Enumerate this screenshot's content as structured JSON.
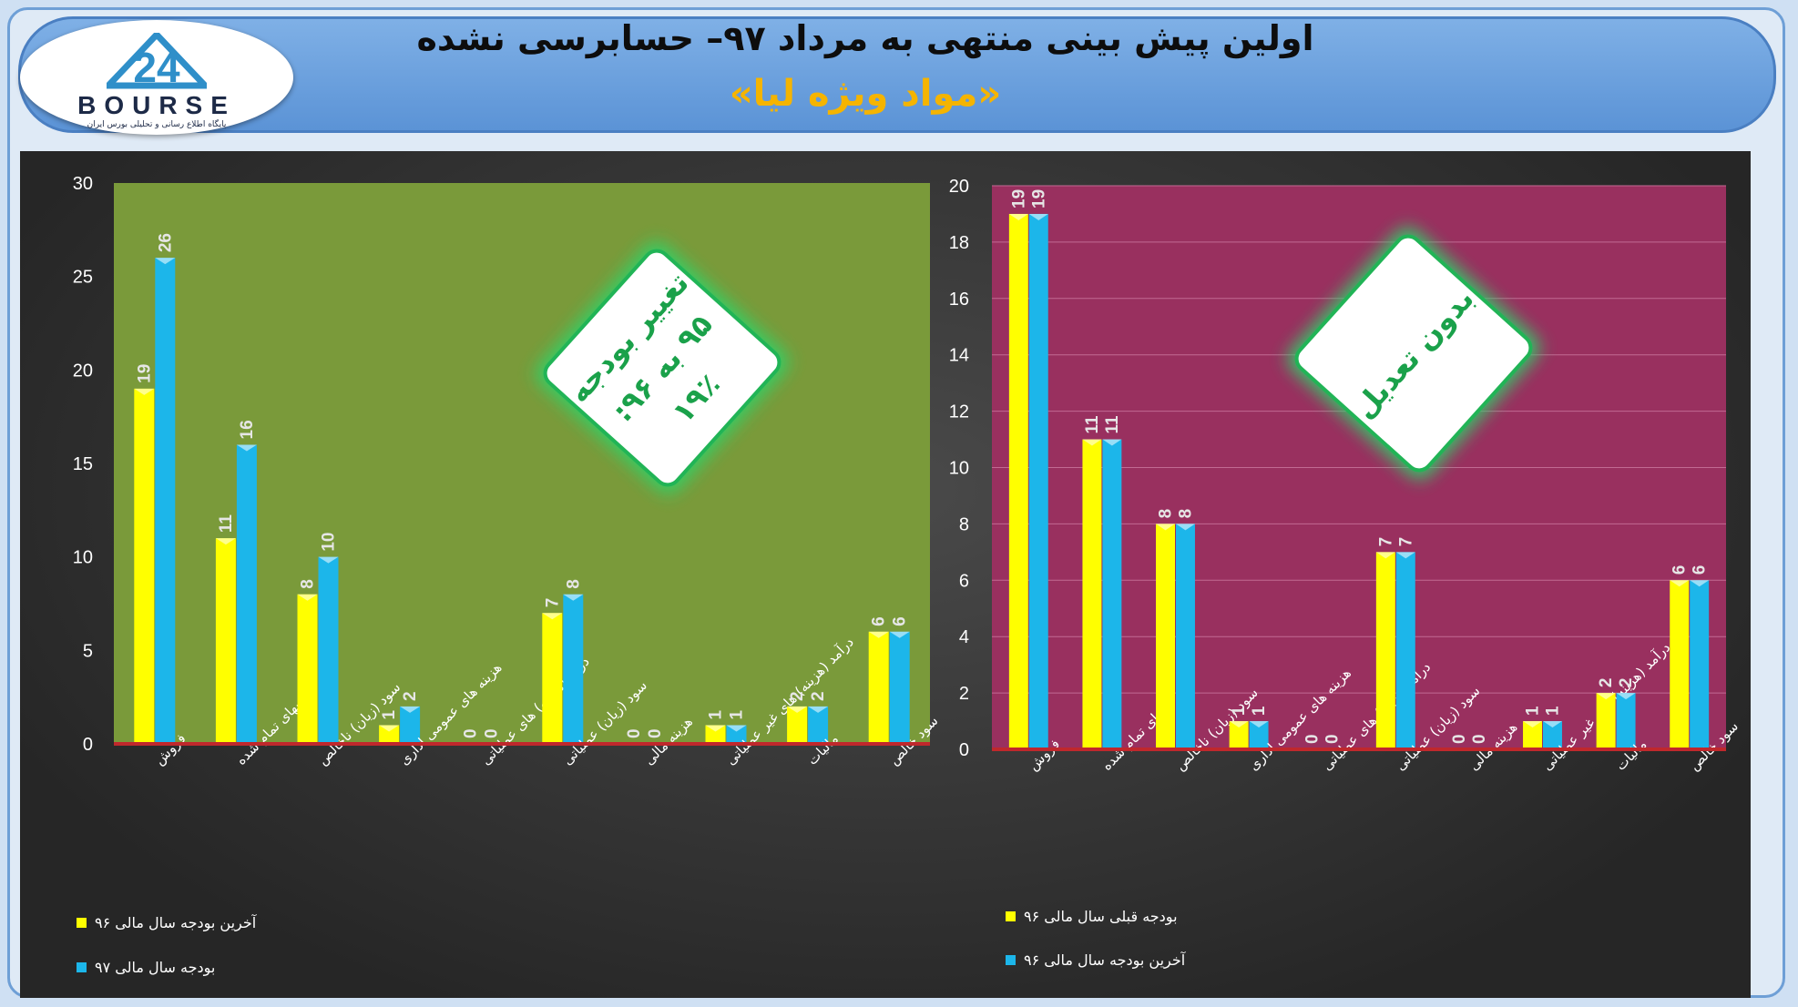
{
  "header": {
    "title": "اولین پیش بینی منتهی به مرداد ۹۷– حسابرسی نشده",
    "subtitle": "«مواد ویژه لیا»"
  },
  "logo": {
    "word": "BOURSE",
    "tagline": "پایگاه اطلاع رسانی و تحلیلی بورس ایران",
    "mark": "24"
  },
  "colors": {
    "series_a": "#ffff00",
    "series_b": "#1cb6ea",
    "left_plot_bg": "#7a9a3a",
    "right_plot_bg": "#99305f",
    "baseline": "#c0282c",
    "badge_text": "#1aa14a"
  },
  "chart_data": [
    {
      "type": "bar",
      "categories": [
        "فروش",
        "بهای تمام شده",
        "سود (زیان) ناخالص",
        "هزینه های عمومی اداری",
        "درآمد(هزینه) های عملیاتی",
        "سود (زیان) عملیاتی",
        "هزینه مالی",
        "درآمد (هزینه) های غیر عملیاتی",
        "مالیات",
        "سود خالص"
      ],
      "series": [
        {
          "name": "آخرین بودجه سال مالی ۹۶",
          "values": [
            19,
            11,
            8,
            1,
            0,
            7,
            0,
            1,
            2,
            6
          ]
        },
        {
          "name": "بودجه سال مالی ۹۷",
          "values": [
            26,
            16,
            10,
            2,
            0,
            8,
            0,
            1,
            2,
            6
          ]
        }
      ],
      "ylim": [
        0,
        30
      ],
      "yticks": [
        0,
        5,
        10,
        15,
        20,
        25,
        30
      ],
      "grid": false,
      "legend_position": "bottom-left",
      "annotation": {
        "lines": [
          "تغییر بودجه",
          "۹۵ به ۹۶:",
          "۱۹٪"
        ]
      }
    },
    {
      "type": "bar",
      "categories": [
        "فروش",
        "بهای تمام شده",
        "سود (زیان) ناخالص",
        "هزینه های عمومی اداری",
        "درآمد(هزینه) های عملیاتی",
        "سود (زیان) عملیاتی",
        "هزینه مالی",
        "درآمد (هزینه) های غیر عملیاتی",
        "مالیات",
        "سود خالص"
      ],
      "series": [
        {
          "name": "بودجه قبلی سال مالی ۹۶",
          "values": [
            19,
            11,
            8,
            1,
            0,
            7,
            0,
            1,
            2,
            6
          ]
        },
        {
          "name": "آخرین بودجه سال مالی ۹۶",
          "values": [
            19,
            11,
            8,
            1,
            0,
            7,
            0,
            1,
            2,
            6
          ]
        }
      ],
      "ylim": [
        0,
        20
      ],
      "yticks": [
        0,
        2,
        4,
        6,
        8,
        10,
        12,
        14,
        16,
        18,
        20
      ],
      "grid": true,
      "legend_position": "bottom-left",
      "annotation": {
        "lines": [
          "بدون تعدیل"
        ]
      }
    }
  ]
}
